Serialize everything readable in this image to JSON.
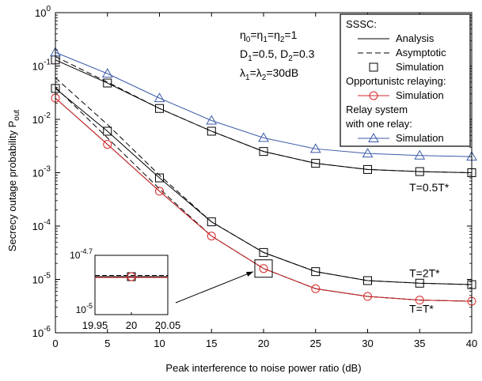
{
  "chart_data": {
    "type": "line",
    "xlabel": "Peak interference to noise power ratio (dB)",
    "ylabel": "Secrecy outage probability",
    "ylabel_sym": "P",
    "ylabel_sub": "out",
    "xlim": [
      0,
      40
    ],
    "ylim": [
      1e-06,
      1
    ],
    "yscale": "log",
    "grid": false,
    "x_ticks": [
      "0",
      "5",
      "10",
      "15",
      "20",
      "25",
      "30",
      "35",
      "40"
    ],
    "y_ticks": [
      {
        "base": "10",
        "exp": "0",
        "value": 1
      },
      {
        "base": "10",
        "exp": "-1",
        "value": 0.1
      },
      {
        "base": "10",
        "exp": "-2",
        "value": 0.01
      },
      {
        "base": "10",
        "exp": "-3",
        "value": 0.001
      },
      {
        "base": "10",
        "exp": "-4",
        "value": 0.0001
      },
      {
        "base": "10",
        "exp": "-5",
        "value": 1e-05
      },
      {
        "base": "10",
        "exp": "-6",
        "value": 1e-06
      }
    ],
    "params": [
      {
        "sym": "η",
        "sub": [
          "0",
          "1",
          "2"
        ],
        "text": "=1"
      },
      {
        "text": "D1=0.5, D2=0.3"
      },
      {
        "text": "λ1=λ2=30dB"
      }
    ],
    "params_text": {
      "line1_a": "η",
      "line1_b": "=η",
      "line1_c": "=η",
      "line1_d": "=1",
      "s0": "0",
      "s1": "1",
      "s2": "2",
      "line2_a": "D",
      "line2_b": "=0.5, D",
      "line2_c": "=0.3",
      "line3_a": "λ",
      "line3_b": "=λ",
      "line3_c": "=30dB"
    },
    "legend": {
      "position": "top-right",
      "groups": [
        {
          "header": "SSSC:",
          "entries": [
            {
              "label": "Analysis",
              "style": "solid",
              "color": "#000000"
            },
            {
              "label": "Asymptotic",
              "style": "dashed",
              "color": "#000000"
            },
            {
              "label": "Simulation",
              "style": "square",
              "color": "#000000"
            }
          ]
        },
        {
          "header": "Opportunistc relaying:",
          "entries": [
            {
              "label": "Simulation",
              "style": "circle",
              "color": "#d62728"
            }
          ]
        },
        {
          "header": "Relay system",
          "header2": "with one relay:",
          "entries": [
            {
              "label": "Simulation",
              "style": "triangle",
              "color": "#3c5aa8"
            }
          ]
        }
      ]
    },
    "annotations": [
      {
        "text": "T=0.5T*",
        "x": 34,
        "y": 0.00045
      },
      {
        "text": "T=2T*",
        "x": 34,
        "y": 1.1e-05
      },
      {
        "text": "T=T*",
        "x": 34,
        "y": 2.4e-06
      }
    ],
    "x": [
      0,
      5,
      10,
      15,
      20,
      25,
      30,
      35,
      40
    ],
    "series": [
      {
        "group": "T=0.5T*",
        "kind": "analysis",
        "color": "#000000",
        "values": [
          0.13,
          0.048,
          0.016,
          0.006,
          0.0025,
          0.0015,
          0.00115,
          0.00105,
          0.001
        ]
      },
      {
        "group": "T=0.5T*",
        "kind": "asymptotic",
        "color": "#000000",
        "values": [
          0.15,
          0.05,
          0.016,
          0.006,
          0.0025,
          0.0015,
          0.00115,
          0.00105,
          0.001
        ]
      },
      {
        "group": "T=0.5T*",
        "kind": "sim_square",
        "color": "#000000",
        "values": [
          0.13,
          0.048,
          0.016,
          0.006,
          0.0025,
          0.0015,
          0.00115,
          0.00105,
          0.001
        ]
      },
      {
        "group": "T=0.5T*",
        "kind": "sim_triangle",
        "color": "#3c5aa8",
        "values": [
          0.18,
          0.072,
          0.025,
          0.0095,
          0.0045,
          0.0028,
          0.0023,
          0.0021,
          0.002
        ]
      },
      {
        "group": "T=2T*",
        "kind": "analysis",
        "color": "#000000",
        "values": [
          0.038,
          0.006,
          0.0008,
          0.00012,
          3.2e-05,
          1.4e-05,
          9.5e-06,
          8.5e-06,
          8e-06
        ]
      },
      {
        "group": "T=2T*",
        "kind": "asymptotic",
        "color": "#000000",
        "values": [
          0.06,
          0.008,
          0.0009,
          0.00012,
          3.2e-05,
          1.4e-05,
          9.5e-06,
          8.5e-06,
          8e-06
        ]
      },
      {
        "group": "T=2T*",
        "kind": "sim_square",
        "color": "#000000",
        "values": [
          0.038,
          0.006,
          0.0008,
          0.00012,
          3.2e-05,
          1.4e-05,
          9.5e-06,
          8.5e-06,
          8e-06
        ]
      },
      {
        "group": "T=T*",
        "kind": "analysis",
        "color": "#000000",
        "values": [
          0.025,
          0.0034,
          0.00045,
          6.5e-05,
          1.6e-05,
          6.7e-06,
          4.8e-06,
          4.1e-06,
          3.9e-06
        ]
      },
      {
        "group": "T=T*",
        "kind": "asymptotic",
        "color": "#000000",
        "values": [
          0.04,
          0.0045,
          0.0005,
          6.5e-05,
          1.6e-05,
          6.7e-06,
          4.8e-06,
          4.1e-06,
          3.9e-06
        ]
      },
      {
        "group": "T=T*",
        "kind": "sim_circle",
        "color": "#d62728",
        "values": [
          0.025,
          0.0034,
          0.00045,
          6.5e-05,
          1.6e-05,
          6.7e-06,
          4.8e-06,
          4.1e-06,
          3.9e-06
        ]
      }
    ],
    "inset": {
      "xlim": [
        19.95,
        20.05
      ],
      "x_ticks": [
        "19.95",
        "20",
        "20.05"
      ],
      "y_ticks": [
        {
          "base": "10",
          "exp": "-4.7"
        },
        {
          "base": "10",
          "exp": "-5"
        }
      ],
      "points": [
        {
          "x": 20,
          "kind": "sim_square",
          "color": "#000000"
        },
        {
          "x": 20,
          "kind": "sim_circle",
          "color": "#d62728"
        }
      ]
    },
    "colors": {
      "black": "#000000",
      "red": "#d62728",
      "blue": "#3c5aa8"
    }
  }
}
